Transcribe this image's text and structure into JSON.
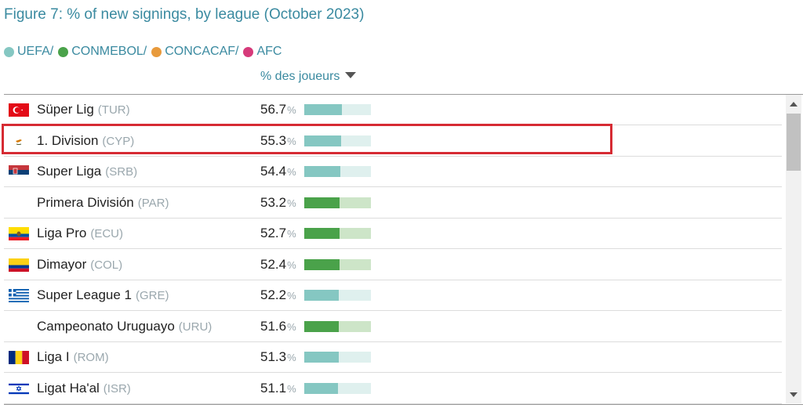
{
  "figure": {
    "title": "Figure 7: % of new signings, by league (October 2023)"
  },
  "legend": [
    {
      "label": "UEFA/",
      "color": "#85c7c2"
    },
    {
      "label": "CONMEBOL/",
      "color": "#4aa24a"
    },
    {
      "label": "CONCACAF/",
      "color": "#e89a3c"
    },
    {
      "label": "AFC",
      "color": "#d63a7a"
    }
  ],
  "table": {
    "column_header": "% des joueurs",
    "sort_icon": "caret-down-icon"
  },
  "colors": {
    "UEFA": {
      "fill": "#85c7c2",
      "track": "#dff0ee"
    },
    "CONMEBOL": {
      "fill": "#4aa24a",
      "track": "#cde5c8"
    },
    "highlight": "#d62b33"
  },
  "highlighted_row": 1,
  "chart_data": {
    "type": "table",
    "title": "Figure 7: % of new signings, by league (October 2023)",
    "value_column": "% des joueurs",
    "scale_max": 100,
    "rows": [
      {
        "league": "Süper Lig",
        "code": "(TUR)",
        "value": 56.7,
        "display": "56.7",
        "confederation": "UEFA",
        "flag": "turkey-flag-icon"
      },
      {
        "league": "1. Division",
        "code": "(CYP)",
        "value": 55.3,
        "display": "55.3",
        "confederation": "UEFA",
        "flag": "cyprus-flag-icon"
      },
      {
        "league": "Super Liga",
        "code": "(SRB)",
        "value": 54.4,
        "display": "54.4",
        "confederation": "UEFA",
        "flag": "serbia-flag-icon"
      },
      {
        "league": "Primera División",
        "code": "(PAR)",
        "value": 53.2,
        "display": "53.2",
        "confederation": "CONMEBOL",
        "flag": ""
      },
      {
        "league": "Liga Pro",
        "code": "(ECU)",
        "value": 52.7,
        "display": "52.7",
        "confederation": "CONMEBOL",
        "flag": "ecuador-flag-icon"
      },
      {
        "league": "Dimayor",
        "code": "(COL)",
        "value": 52.4,
        "display": "52.4",
        "confederation": "CONMEBOL",
        "flag": "colombia-flag-icon"
      },
      {
        "league": "Super League 1",
        "code": "(GRE)",
        "value": 52.2,
        "display": "52.2",
        "confederation": "UEFA",
        "flag": "greece-flag-icon"
      },
      {
        "league": "Campeonato Uruguayo",
        "code": "(URU)",
        "value": 51.6,
        "display": "51.6",
        "confederation": "CONMEBOL",
        "flag": ""
      },
      {
        "league": "Liga I",
        "code": "(ROM)",
        "value": 51.3,
        "display": "51.3",
        "confederation": "UEFA",
        "flag": "romania-flag-icon"
      },
      {
        "league": "Ligat Ha'al",
        "code": "(ISR)",
        "value": 51.1,
        "display": "51.1",
        "confederation": "UEFA",
        "flag": "israel-flag-icon"
      }
    ]
  }
}
